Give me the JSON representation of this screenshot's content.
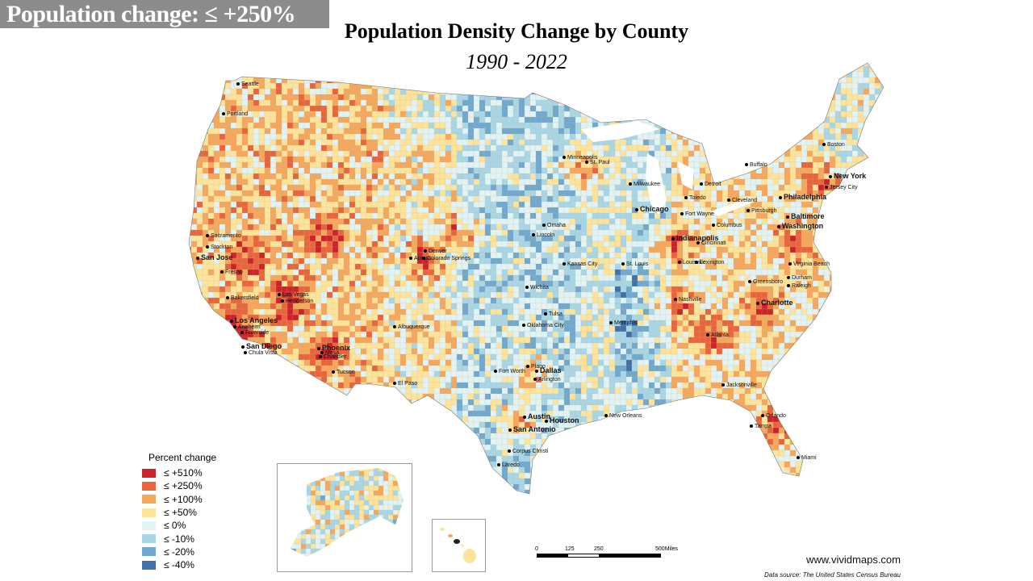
{
  "banner": "Population change: ≤ +250%",
  "title": "Population Density Change by County",
  "subtitle": "1990 - 2022",
  "legend": {
    "title": "Percent change",
    "items": [
      {
        "label": "≤ +510%",
        "color": "#cc2229"
      },
      {
        "label": "≤ +250%",
        "color": "#e8643d"
      },
      {
        "label": "≤ +100%",
        "color": "#f5a75e"
      },
      {
        "label": "≤ +50%",
        "color": "#fde49d"
      },
      {
        "label": "≤ 0%",
        "color": "#e2f3f5"
      },
      {
        "label": "≤ -10%",
        "color": "#a8d6e6"
      },
      {
        "label": "≤ -20%",
        "color": "#70a8d0"
      },
      {
        "label": "≤ -40%",
        "color": "#4170ab"
      }
    ]
  },
  "scale": {
    "t0": "0",
    "t1": "125",
    "t2": "250",
    "t3": "500",
    "unit": "Miles"
  },
  "website": "www.vividmaps.com",
  "source": "Data source: The United States Census Bureau",
  "cities": [
    "Seattle",
    "Portland",
    "Sacramento",
    "Stockton",
    "San Jose",
    "Fresno",
    "Bakersfield",
    "Los Angeles",
    "Anaheim",
    "Riverside",
    "San Diego",
    "Chula Vista",
    "Las Vegas",
    "Henderson",
    "Phoenix",
    "Mesa",
    "Chandler",
    "Tucson",
    "Albuquerque",
    "El Paso",
    "Denver",
    "Aurora",
    "Colorado Springs",
    "Minneapolis",
    "St. Paul",
    "Omaha",
    "Lincoln",
    "Kansas City",
    "Wichita",
    "Tulsa",
    "Oklahoma City",
    "Plano",
    "Fort Worth",
    "Dallas",
    "Arlington",
    "Austin",
    "San Antonio",
    "Houston",
    "Corpus Christi",
    "Laredo",
    "New Orleans",
    "Memphis",
    "Nashville",
    "St. Louis",
    "Chicago",
    "Milwaukee",
    "Detroit",
    "Toledo",
    "Cleveland",
    "Fort Wayne",
    "Indianapolis",
    "Columbus",
    "Cincinnati",
    "Louisville",
    "Lexington",
    "Pittsburgh",
    "Buffalo",
    "Boston",
    "New York",
    "Jersey City",
    "Philadelphia",
    "Baltimore",
    "Washington",
    "Virginia Beach",
    "Greensboro",
    "Durham",
    "Raleigh",
    "Charlotte",
    "Atlanta",
    "Jacksonville",
    "Orlando",
    "Tampa",
    "Miami"
  ]
}
